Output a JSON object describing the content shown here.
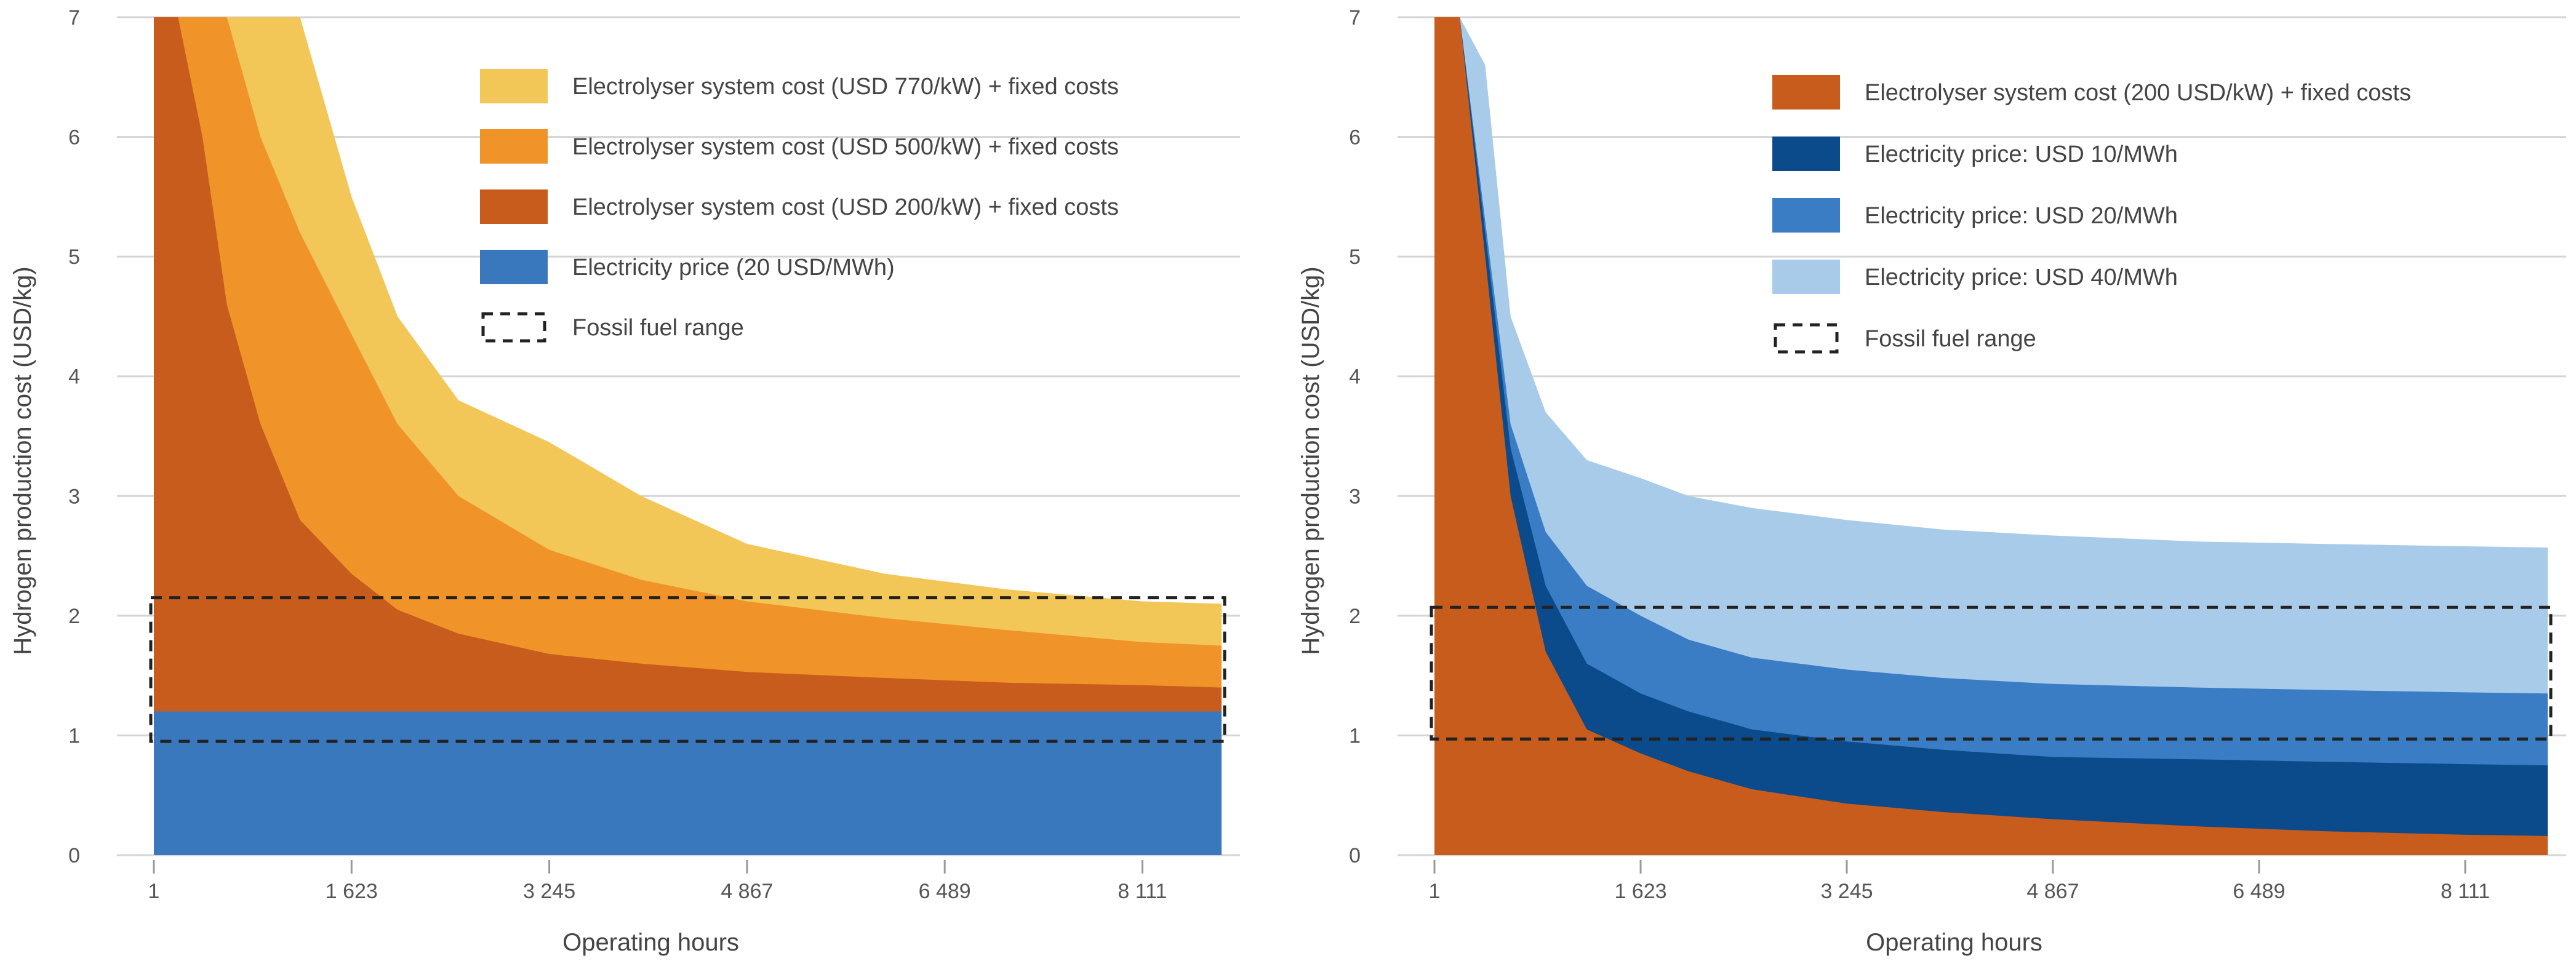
{
  "chart_data": [
    {
      "type": "area",
      "ylabel": "Hydrogen production cost (USD/kg)",
      "xlabel": "Operating hours",
      "ylim": [
        0,
        7
      ],
      "yticks": [
        "0",
        "1",
        "2",
        "3",
        "4",
        "5",
        "6",
        "7"
      ],
      "xlim": [
        1,
        8760
      ],
      "xticks": [
        {
          "value": 1,
          "label": "1"
        },
        {
          "value": 1623,
          "label": "1 623"
        },
        {
          "value": 3245,
          "label": "3 245"
        },
        {
          "value": 4867,
          "label": "4 867"
        },
        {
          "value": 6489,
          "label": "6 489"
        },
        {
          "value": 8111,
          "label": "8 111"
        }
      ],
      "grid": true,
      "legend_position": "top-right",
      "x": [
        1,
        200,
        400,
        600,
        876,
        1200,
        1623,
        2000,
        2500,
        3245,
        4000,
        4867,
        6000,
        7000,
        8111,
        8760
      ],
      "series": [
        {
          "name": "Electricity price (20 USD/MWh)",
          "color": "#3a78be",
          "values": [
            1.2,
            1.2,
            1.2,
            1.2,
            1.2,
            1.2,
            1.2,
            1.2,
            1.2,
            1.2,
            1.2,
            1.2,
            1.2,
            1.2,
            1.2,
            1.2
          ]
        },
        {
          "name": "Electrolyser system cost (USD 200/kW) + fixed costs",
          "color": "#c85c1c",
          "values": [
            7.0,
            7.0,
            6.0,
            4.6,
            3.6,
            2.8,
            2.35,
            2.05,
            1.85,
            1.68,
            1.6,
            1.53,
            1.48,
            1.44,
            1.42,
            1.4
          ]
        },
        {
          "name": "Electrolyser system cost (USD 500/kW) + fixed costs",
          "color": "#f0942a",
          "values": [
            7.0,
            7.0,
            7.0,
            7.0,
            6.0,
            5.2,
            4.35,
            3.6,
            3.0,
            2.55,
            2.3,
            2.12,
            1.98,
            1.88,
            1.78,
            1.75
          ]
        },
        {
          "name": "Electrolyser system cost (USD 770/kW) + fixed costs",
          "color": "#f3c658",
          "values": [
            7.0,
            7.0,
            7.0,
            7.0,
            7.0,
            7.0,
            5.5,
            4.5,
            3.8,
            3.45,
            3.0,
            2.6,
            2.35,
            2.22,
            2.12,
            2.1
          ]
        }
      ],
      "fossil_fuel_range": [
        0.95,
        2.15
      ],
      "legend": [
        {
          "label": "Electrolyser system cost (USD 770/kW) + fixed costs",
          "color": "#f3c658"
        },
        {
          "label": "Electrolyser system cost (USD 500/kW) + fixed costs",
          "color": "#f0942a"
        },
        {
          "label": "Electrolyser system cost (USD 200/kW) + fixed costs",
          "color": "#c85c1c"
        },
        {
          "label": "Electricity price (20 USD/MWh)",
          "color": "#3a78be"
        },
        {
          "label": "Fossil fuel range",
          "color": "dashed"
        }
      ]
    },
    {
      "type": "area",
      "ylabel": "Hydrogen production cost (USD/kg)",
      "xlabel": "Operating hours",
      "ylim": [
        0,
        7
      ],
      "yticks": [
        "0",
        "1",
        "2",
        "3",
        "4",
        "5",
        "6",
        "7"
      ],
      "xlim": [
        1,
        8760
      ],
      "xticks": [
        {
          "value": 1,
          "label": "1"
        },
        {
          "value": 1623,
          "label": "1 623"
        },
        {
          "value": 3245,
          "label": "3 245"
        },
        {
          "value": 4867,
          "label": "4 867"
        },
        {
          "value": 6489,
          "label": "6 489"
        },
        {
          "value": 8111,
          "label": "8 111"
        }
      ],
      "grid": true,
      "legend_position": "top-right",
      "x": [
        1,
        200,
        400,
        600,
        876,
        1200,
        1623,
        2000,
        2500,
        3245,
        4000,
        4867,
        6000,
        7000,
        8111,
        8760
      ],
      "series": [
        {
          "name": "Electrolyser system cost (200 USD/kW) + fixed costs",
          "color": "#c85c1c",
          "values": [
            7.0,
            7.0,
            5.0,
            3.0,
            1.7,
            1.05,
            0.85,
            0.7,
            0.55,
            0.43,
            0.36,
            0.3,
            0.24,
            0.2,
            0.17,
            0.16
          ]
        },
        {
          "name": "Electricity price: USD 10/MWh",
          "color": "#0b4a8b",
          "values": [
            7.0,
            7.0,
            5.2,
            3.4,
            2.25,
            1.6,
            1.35,
            1.2,
            1.05,
            0.95,
            0.88,
            0.82,
            0.8,
            0.78,
            0.76,
            0.75
          ]
        },
        {
          "name": "Electricity price: USD 20/MWh",
          "color": "#3a7dc4",
          "values": [
            7.0,
            7.0,
            5.3,
            3.6,
            2.7,
            2.25,
            2.0,
            1.8,
            1.65,
            1.55,
            1.48,
            1.43,
            1.4,
            1.38,
            1.36,
            1.35
          ]
        },
        {
          "name": "Electricity price: USD 40/MWh",
          "color": "#a9cbea",
          "values": [
            7.0,
            7.0,
            6.6,
            4.5,
            3.7,
            3.3,
            3.15,
            3.0,
            2.9,
            2.8,
            2.72,
            2.67,
            2.62,
            2.6,
            2.58,
            2.57
          ]
        }
      ],
      "fossil_fuel_range": [
        0.97,
        2.07
      ],
      "legend": [
        {
          "label": "Electrolyser system cost (200 USD/kW) + fixed costs",
          "color": "#c85c1c"
        },
        {
          "label": "Electricity price: USD 10/MWh",
          "color": "#0b4a8b"
        },
        {
          "label": "Electricity price: USD 20/MWh",
          "color": "#3a7dc4"
        },
        {
          "label": "Electricity price: USD 40/MWh",
          "color": "#a9cbea"
        },
        {
          "label": "Fossil fuel range",
          "color": "dashed"
        }
      ]
    }
  ]
}
